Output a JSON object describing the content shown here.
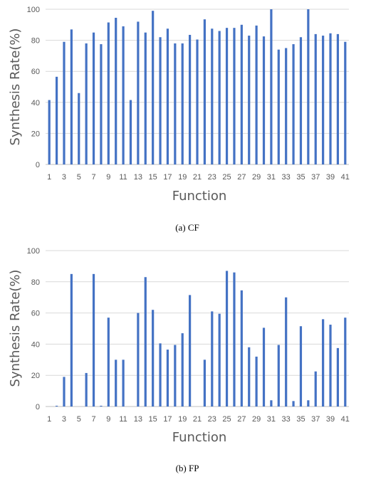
{
  "chart_data": [
    {
      "type": "bar",
      "caption": "(a) CF",
      "xlabel": "Function",
      "ylabel": "Synthesis Rate(%)",
      "ylim": [
        0,
        100
      ],
      "yticks": [
        0,
        20,
        40,
        60,
        80,
        100
      ],
      "grid": true,
      "bar_color": "#4472C4",
      "x": [
        1,
        2,
        3,
        4,
        5,
        6,
        7,
        8,
        9,
        10,
        11,
        12,
        13,
        14,
        15,
        16,
        17,
        18,
        19,
        20,
        21,
        22,
        23,
        24,
        25,
        26,
        27,
        28,
        29,
        30,
        31,
        32,
        33,
        34,
        35,
        36,
        37,
        38,
        39,
        40,
        41
      ],
      "xtick_labels": [
        "1",
        "3",
        "5",
        "7",
        "9",
        "11",
        "13",
        "15",
        "17",
        "19",
        "21",
        "23",
        "25",
        "27",
        "29",
        "31",
        "33",
        "35",
        "37",
        "39",
        "41"
      ],
      "values": [
        41.5,
        56.5,
        79,
        87,
        46,
        78,
        85,
        77.5,
        91.5,
        94.5,
        89,
        41.5,
        92,
        85,
        99,
        82,
        87.5,
        78,
        78,
        83.5,
        80.5,
        93.5,
        87.5,
        86,
        88,
        88,
        90,
        83,
        89.5,
        82.5,
        100,
        74,
        75,
        77.5,
        82,
        100,
        84,
        83,
        84.5,
        84,
        79
      ]
    },
    {
      "type": "bar",
      "caption": "(b) FP",
      "xlabel": "Function",
      "ylabel": "Synthesis Rate(%)",
      "ylim": [
        0,
        100
      ],
      "yticks": [
        0,
        20,
        40,
        60,
        80,
        100
      ],
      "grid": true,
      "bar_color": "#4472C4",
      "x": [
        1,
        2,
        3,
        4,
        5,
        6,
        7,
        8,
        9,
        10,
        11,
        12,
        13,
        14,
        15,
        16,
        17,
        18,
        19,
        20,
        21,
        22,
        23,
        24,
        25,
        26,
        27,
        28,
        29,
        30,
        31,
        32,
        33,
        34,
        35,
        36,
        37,
        38,
        39,
        40,
        41
      ],
      "xtick_labels": [
        "1",
        "3",
        "5",
        "7",
        "9",
        "11",
        "13",
        "15",
        "17",
        "19",
        "21",
        "23",
        "25",
        "27",
        "29",
        "31",
        "33",
        "35",
        "37",
        "39",
        "41"
      ],
      "values": [
        0,
        0.5,
        19,
        85,
        0,
        21.5,
        85,
        0.5,
        57,
        30,
        30,
        0,
        60,
        83,
        62,
        40.5,
        36.5,
        39.5,
        47,
        71.5,
        0,
        30,
        61,
        59.5,
        87,
        86,
        74.5,
        38,
        32,
        50.5,
        4,
        39.5,
        70,
        3.5,
        51.5,
        4,
        22.5,
        56,
        52.5,
        37.5,
        57
      ]
    }
  ]
}
